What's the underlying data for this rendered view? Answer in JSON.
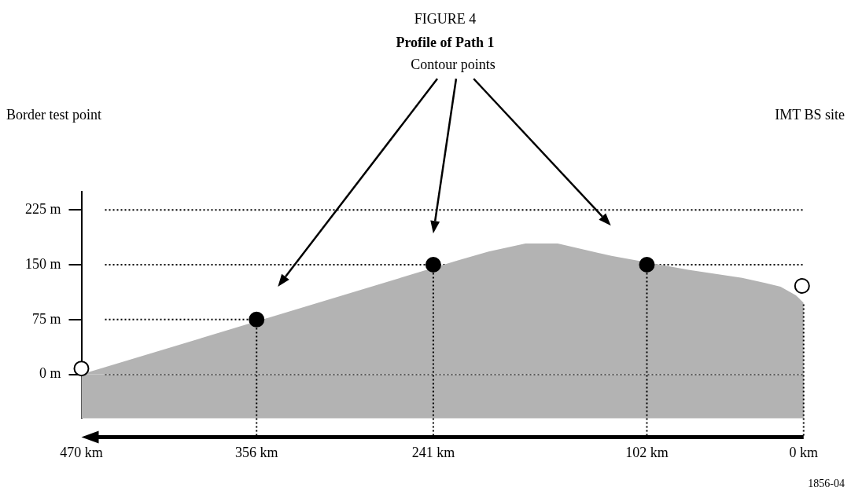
{
  "chart_data": {
    "type": "area",
    "title": "FIGURE 4",
    "subtitle": "Profile of Path 1",
    "annotations": [
      "Contour points",
      "Border test point",
      "IMT BS site",
      "1856-04"
    ],
    "series": [
      {
        "color": "#b3b3b3",
        "x": [
          470,
          300,
          225,
          205,
          181,
          160,
          125,
          75,
          40,
          25,
          15,
          5,
          0
        ],
        "values": [
          0,
          108,
          156,
          168,
          179,
          179,
          162,
          143,
          132,
          125,
          120,
          108,
          98
        ]
      },
      {
        "type": "scatter",
        "color": "#000000",
        "marker": "circle",
        "x": [
          356,
          241,
          102
        ],
        "values": [
          75,
          150,
          150
        ]
      },
      {
        "type": "scatter",
        "color": "#ffffff",
        "marker": "circle",
        "x": [
          470,
          1
        ],
        "values": [
          8,
          121
        ]
      }
    ],
    "xlim": [
      470,
      0
    ],
    "xticks": [
      {
        "value": 470,
        "label": "470 km"
      },
      {
        "value": 356,
        "label": "356 km"
      },
      {
        "value": 241,
        "label": "241 km"
      },
      {
        "value": 102,
        "label": "102 km"
      },
      {
        "value": 0,
        "label": "0 km"
      }
    ],
    "ylim": [
      -60,
      250
    ],
    "yticks": [
      {
        "value": 0,
        "label": "0 m"
      },
      {
        "value": 75,
        "label": "75 m"
      },
      {
        "value": 150,
        "label": "150 m"
      },
      {
        "value": 225,
        "label": "225 m"
      }
    ],
    "ref_lines": [
      {
        "axis": "x",
        "value": 356,
        "line_style": "dotted"
      },
      {
        "axis": "x",
        "value": 241,
        "line_style": "dotted"
      },
      {
        "axis": "x",
        "value": 102,
        "line_style": "dotted"
      },
      {
        "axis": "x",
        "value": 0,
        "line_style": "dotted"
      }
    ],
    "bands": [
      {
        "axis": "y",
        "from": -60,
        "to": 0,
        "color": "#b3b3b3"
      }
    ],
    "grid": "y",
    "line_style": "dotted",
    "legend": false
  }
}
